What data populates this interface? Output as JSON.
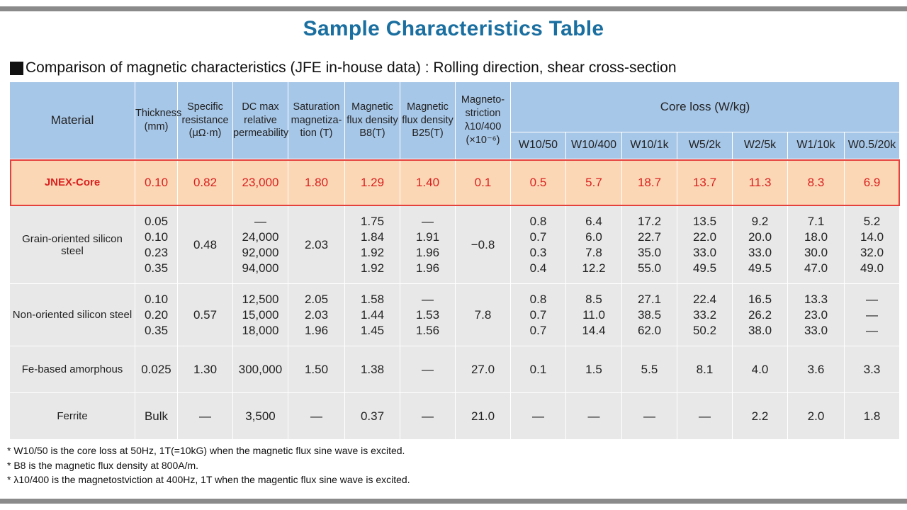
{
  "title": "Sample Characteristics Table",
  "subtitle": "Comparison of magnetic characteristics (JFE in-house data) : Rolling direction, shear cross-section",
  "headers": {
    "material": "Material",
    "thickness": [
      "Thickness",
      "(mm)"
    ],
    "resistance": [
      "Specific",
      "resistance",
      "(μΩ·m)"
    ],
    "permeability": [
      "DC max",
      "relative",
      "permeability"
    ],
    "saturation": [
      "Saturation",
      "magnetiza-",
      "tion (T)"
    ],
    "b8": [
      "Magnetic",
      "flux density",
      "B8(T)"
    ],
    "b25": [
      "Magnetic",
      "flux density",
      "B25(T)"
    ],
    "magnetostriction": [
      "Magneto-",
      "striction",
      "λ10/400",
      "(×10⁻⁶)"
    ],
    "core_loss": "Core loss (W/kg)",
    "core_loss_cols": [
      "W10/50",
      "W10/400",
      "W10/1k",
      "W5/2k",
      "W2/5k",
      "W1/10k",
      "W0.5/20k"
    ]
  },
  "rows": [
    {
      "material": "JNEX-Core",
      "cells": [
        "0.10",
        "0.82",
        "23,000",
        "1.80",
        "1.29",
        "1.40",
        "0.1",
        "0.5",
        "5.7",
        "18.7",
        "13.7",
        "11.3",
        "8.3",
        "6.9"
      ]
    },
    {
      "material": "Grain-oriented silicon steel",
      "cells": [
        "0.05\n0.10\n0.23\n0.35",
        "0.48",
        "—\n24,000\n92,000\n94,000",
        "2.03",
        "1.75\n1.84\n1.92\n1.92",
        "—\n1.91\n1.96\n1.96",
        "−0.8",
        "0.8\n0.7\n0.3\n0.4",
        "6.4\n6.0\n7.8\n12.2",
        "17.2\n22.7\n35.0\n55.0",
        "13.5\n22.0\n33.0\n49.5",
        "9.2\n20.0\n33.0\n49.5",
        "7.1\n18.0\n30.0\n47.0",
        "5.2\n14.0\n32.0\n49.0"
      ]
    },
    {
      "material": "Non-oriented silicon steel",
      "cells": [
        "0.10\n0.20\n0.35",
        "0.57",
        "12,500\n15,000\n18,000",
        "2.05\n2.03\n1.96",
        "1.58\n1.44\n1.45",
        "—\n1.53\n1.56",
        "7.8",
        "0.8\n0.7\n0.7",
        "8.5\n11.0\n14.4",
        "27.1\n38.5\n62.0",
        "22.4\n33.2\n50.2",
        "16.5\n26.2\n38.0",
        "13.3\n23.0\n33.0",
        "—\n—\n—"
      ]
    },
    {
      "material": "Fe-based amorphous",
      "cells": [
        "0.025",
        "1.30",
        "300,000",
        "1.50",
        "1.38",
        "—",
        "27.0",
        "0.1",
        "1.5",
        "5.5",
        "8.1",
        "4.0",
        "3.6",
        "3.3"
      ]
    },
    {
      "material": "Ferrite",
      "cells": [
        "Bulk",
        "—",
        "3,500",
        "—",
        "0.37",
        "—",
        "21.0",
        "—",
        "—",
        "—",
        "—",
        "2.2",
        "2.0",
        "1.8"
      ]
    }
  ],
  "notes": [
    "* W10/50 is the core loss at 50Hz, 1T(=10kG) when the magnetic flux sine wave is excited.",
    "* B8 is the magnetic flux density at 800A/m.",
    "* λ10/400 is the magnetostviction at 400Hz, 1T when the magentic flux sine wave is excited."
  ],
  "colors": {
    "title": "#1a6fa0",
    "header_bg": "#a7c7e8",
    "highlight_bg": "#fcd7b6",
    "highlight_text": "#d9211f",
    "highlight_border": "#e4403c",
    "row_bg": "#e8e8e8"
  }
}
